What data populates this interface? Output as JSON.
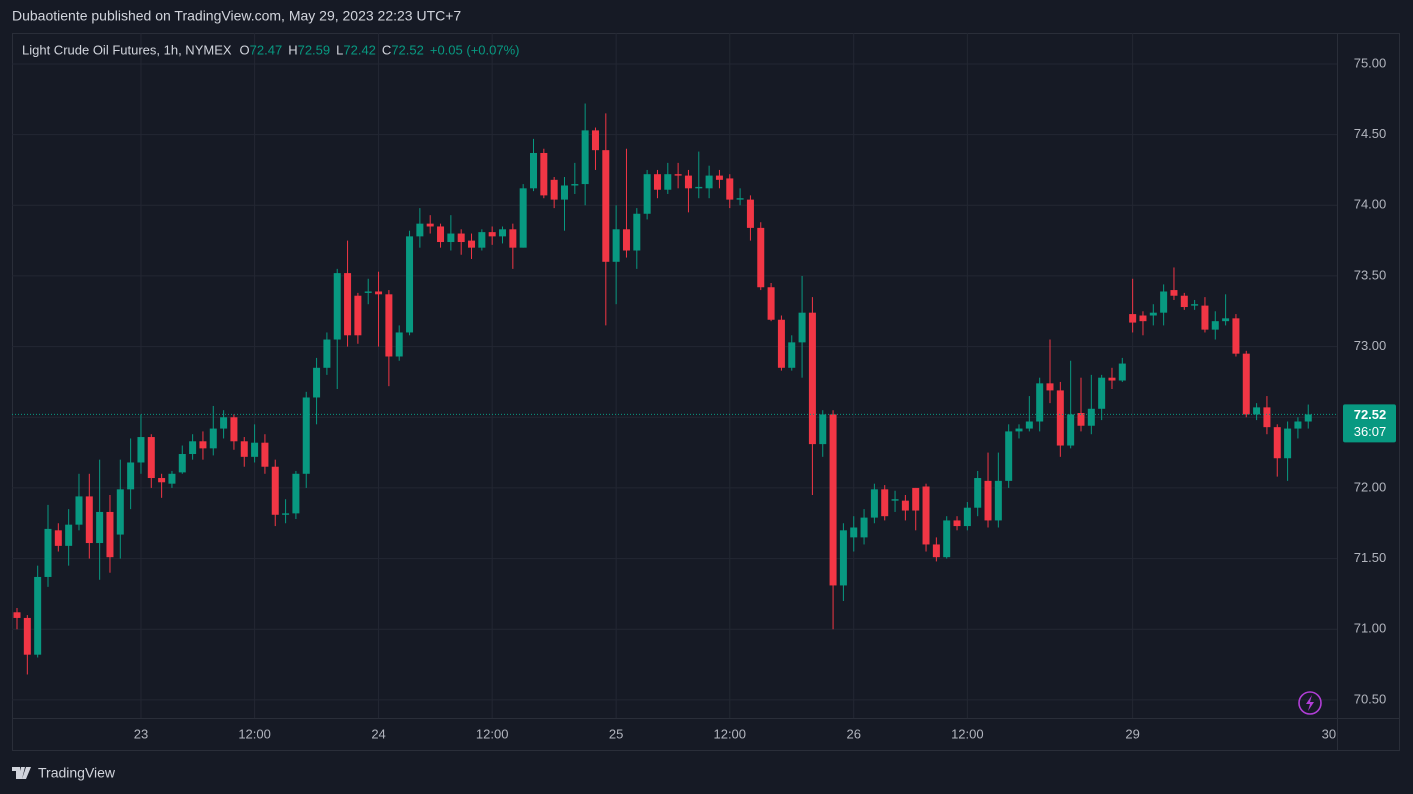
{
  "publisher_line": "Dubaotiente published on TradingView.com, May 29, 2023 22:23 UTC+7",
  "brand": "TradingView",
  "chart_data": {
    "type": "candlestick",
    "title": "Light Crude Oil Futures, 1h, NYMEX",
    "ohlc_letters": [
      "O",
      "H",
      "L",
      "C"
    ],
    "change_label": "+0.05 (+0.07%)",
    "countdown": "36:07",
    "up_color": "#089981",
    "down_color": "#f23645",
    "grid": true,
    "categories": [
      null,
      null,
      null,
      null,
      null,
      null,
      null,
      null,
      null,
      null,
      null,
      null,
      "23",
      null,
      null,
      null,
      null,
      null,
      null,
      null,
      null,
      null,
      null,
      "12:00",
      null,
      null,
      null,
      null,
      null,
      null,
      null,
      null,
      null,
      null,
      null,
      "24",
      null,
      null,
      null,
      null,
      null,
      null,
      null,
      null,
      null,
      null,
      "12:00",
      null,
      null,
      null,
      null,
      null,
      null,
      null,
      null,
      null,
      null,
      null,
      "25",
      null,
      null,
      null,
      null,
      null,
      null,
      null,
      null,
      null,
      null,
      "12:00",
      null,
      null,
      null,
      null,
      null,
      null,
      null,
      null,
      null,
      null,
      null,
      "26",
      null,
      null,
      null,
      null,
      null,
      null,
      null,
      null,
      null,
      null,
      "12:00",
      null,
      null,
      null,
      null,
      null,
      null,
      null,
      null,
      null,
      null,
      null,
      null,
      null,
      null,
      null,
      "29",
      null,
      null,
      null,
      null,
      null,
      null,
      null,
      null,
      null,
      null,
      null,
      null,
      null,
      null,
      null,
      null,
      null
    ],
    "x_axis_end_label": "30",
    "open": [
      71.12,
      71.08,
      70.82,
      71.37,
      71.7,
      71.59,
      71.74,
      71.94,
      71.61,
      71.83,
      71.67,
      71.99,
      72.18,
      72.36,
      72.07,
      72.03,
      72.11,
      72.24,
      72.33,
      72.28,
      72.42,
      72.5,
      72.33,
      72.22,
      72.32,
      72.15,
      71.81,
      71.82,
      72.1,
      72.64,
      72.85,
      73.05,
      73.52,
      73.36,
      73.38,
      73.39,
      73.37,
      72.93,
      73.1,
      73.78,
      73.87,
      73.85,
      73.74,
      73.8,
      73.75,
      73.7,
      73.81,
      73.78,
      73.83,
      73.7,
      74.12,
      74.37,
      74.18,
      74.04,
      74.14,
      74.15,
      74.53,
      74.39,
      73.6,
      73.83,
      73.68,
      73.94,
      74.22,
      74.11,
      74.22,
      74.21,
      74.12,
      74.12,
      74.21,
      74.19,
      74.04,
      74.04,
      73.84,
      73.42,
      73.19,
      72.85,
      73.03,
      73.24,
      72.31,
      72.52,
      71.31,
      71.65,
      71.65,
      71.79,
      71.99,
      71.91,
      71.91,
      72.0,
      72.01,
      71.6,
      71.51,
      71.77,
      71.73,
      71.86,
      72.05,
      71.77,
      72.05,
      72.4,
      72.42,
      72.47,
      72.74,
      72.69,
      72.3,
      72.53,
      72.44,
      72.56,
      72.78,
      72.76,
      73.23,
      73.22,
      73.22,
      73.24,
      73.4,
      73.36,
      73.29,
      73.29,
      73.12,
      73.18,
      73.2,
      72.95,
      72.52,
      72.57,
      72.43,
      72.21,
      72.42,
      72.47
    ],
    "high": [
      71.15,
      71.1,
      71.45,
      71.88,
      71.75,
      71.85,
      72.1,
      72.1,
      72.2,
      71.95,
      72.2,
      72.35,
      72.52,
      72.38,
      72.1,
      72.12,
      72.3,
      72.38,
      72.4,
      72.58,
      72.55,
      72.52,
      72.36,
      72.45,
      72.38,
      72.2,
      71.92,
      72.12,
      72.68,
      72.92,
      73.1,
      73.55,
      73.75,
      73.38,
      73.48,
      73.53,
      73.4,
      73.15,
      73.82,
      73.98,
      73.93,
      73.87,
      73.93,
      73.83,
      73.8,
      73.83,
      73.85,
      73.85,
      73.87,
      74.15,
      74.47,
      74.4,
      74.2,
      74.2,
      74.3,
      74.72,
      74.55,
      74.65,
      74.0,
      74.4,
      73.98,
      74.25,
      74.25,
      74.3,
      74.3,
      74.25,
      74.38,
      74.28,
      74.25,
      74.22,
      74.12,
      74.07,
      73.88,
      73.45,
      73.22,
      73.08,
      73.5,
      73.35,
      72.55,
      72.55,
      71.75,
      71.8,
      71.85,
      72.03,
      72.02,
      71.98,
      71.95,
      72.0,
      72.03,
      71.65,
      71.8,
      71.8,
      71.9,
      72.12,
      72.25,
      72.25,
      72.45,
      72.45,
      72.65,
      72.78,
      73.05,
      72.75,
      72.9,
      72.78,
      72.8,
      72.8,
      72.85,
      72.92,
      73.48,
      73.25,
      73.3,
      73.44,
      73.56,
      73.38,
      73.33,
      73.35,
      73.25,
      73.37,
      73.23,
      72.97,
      72.6,
      72.65,
      72.45,
      72.47,
      72.5,
      72.59
    ],
    "low": [
      71.0,
      70.68,
      70.8,
      71.3,
      71.55,
      71.45,
      71.7,
      71.5,
      71.35,
      71.4,
      71.5,
      71.85,
      72.1,
      72.0,
      71.93,
      72.0,
      72.1,
      72.2,
      72.2,
      72.23,
      72.35,
      72.27,
      72.15,
      72.18,
      72.1,
      71.73,
      71.75,
      71.78,
      72.0,
      72.45,
      72.8,
      72.7,
      73.0,
      73.02,
      73.3,
      73.0,
      72.72,
      72.9,
      73.08,
      73.7,
      73.8,
      73.7,
      73.68,
      73.65,
      73.62,
      73.68,
      73.72,
      73.73,
      73.55,
      73.7,
      74.1,
      74.05,
      73.98,
      73.82,
      74.08,
      74.0,
      74.25,
      73.15,
      73.3,
      73.63,
      73.55,
      73.9,
      74.05,
      74.08,
      74.12,
      73.95,
      74.05,
      74.05,
      74.12,
      73.98,
      74.0,
      73.75,
      73.4,
      73.18,
      72.83,
      72.83,
      72.78,
      71.95,
      72.22,
      71.0,
      71.2,
      71.55,
      71.6,
      71.75,
      71.77,
      71.83,
      71.77,
      71.7,
      71.55,
      71.48,
      71.5,
      71.7,
      71.7,
      71.8,
      71.72,
      71.72,
      72.0,
      72.35,
      72.4,
      72.4,
      72.6,
      72.22,
      72.28,
      72.4,
      72.38,
      72.48,
      72.7,
      72.75,
      73.1,
      73.08,
      73.15,
      73.15,
      73.33,
      73.26,
      73.26,
      73.1,
      73.05,
      73.15,
      72.93,
      72.5,
      72.48,
      72.38,
      72.08,
      72.05,
      72.35,
      72.42
    ],
    "close": [
      71.08,
      70.82,
      71.37,
      71.71,
      71.59,
      71.74,
      71.94,
      71.61,
      71.83,
      71.51,
      71.99,
      72.18,
      72.36,
      72.07,
      72.04,
      72.1,
      72.24,
      72.33,
      72.28,
      72.42,
      72.5,
      72.33,
      72.22,
      72.32,
      72.15,
      71.81,
      71.82,
      72.1,
      72.64,
      72.85,
      73.05,
      73.52,
      73.08,
      73.08,
      73.39,
      73.37,
      72.93,
      73.1,
      73.78,
      73.87,
      73.85,
      73.74,
      73.8,
      73.74,
      73.7,
      73.81,
      73.78,
      73.83,
      73.7,
      74.12,
      74.37,
      74.07,
      74.04,
      74.14,
      74.15,
      74.53,
      74.39,
      73.6,
      73.83,
      73.68,
      73.94,
      74.22,
      74.11,
      74.22,
      74.21,
      74.12,
      74.13,
      74.21,
      74.18,
      74.04,
      74.05,
      73.84,
      73.42,
      73.19,
      72.85,
      73.03,
      73.24,
      72.31,
      72.52,
      71.31,
      71.7,
      71.72,
      71.79,
      71.99,
      71.8,
      71.92,
      71.84,
      71.84,
      71.6,
      71.51,
      71.77,
      71.73,
      71.86,
      72.07,
      71.77,
      72.05,
      72.4,
      72.42,
      72.47,
      72.74,
      72.69,
      72.3,
      72.52,
      72.44,
      72.56,
      72.78,
      72.76,
      72.88,
      73.17,
      73.18,
      73.24,
      73.39,
      73.36,
      73.28,
      73.3,
      73.12,
      73.18,
      73.2,
      72.95,
      72.52,
      72.57,
      72.43,
      72.21,
      72.42,
      72.47,
      72.52
    ],
    "ylim": [
      70.372,
      75.219
    ],
    "yticks": [
      {
        "value": 70.5,
        "label": "70.50"
      },
      {
        "value": 71,
        "label": "71.00"
      },
      {
        "value": 71.5,
        "label": "71.50"
      },
      {
        "value": 72,
        "label": "72.00"
      },
      {
        "value": 72.5,
        "label": "72.50"
      },
      {
        "value": 73,
        "label": "73.00"
      },
      {
        "value": 73.5,
        "label": "73.50"
      },
      {
        "value": 74,
        "label": "74.00"
      },
      {
        "value": 74.5,
        "label": "74.50"
      },
      {
        "value": 75,
        "label": "75.00"
      }
    ]
  }
}
